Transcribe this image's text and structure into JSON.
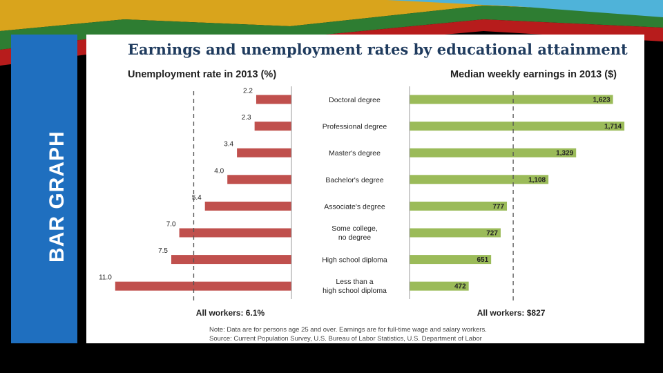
{
  "slide": {
    "side_title": "BAR GRAPH"
  },
  "chart_data": {
    "type": "bar",
    "title": "Earnings and unemployment rates by educational attainment",
    "categories": [
      "Doctoral degree",
      "Professional degree",
      "Master's degree",
      "Bachelor's degree",
      "Associate's degree",
      "Some college, no degree",
      "High school diploma",
      "Less than a high school diploma"
    ],
    "category_lines": [
      [
        "Doctoral degree"
      ],
      [
        "Professional degree"
      ],
      [
        "Master's degree"
      ],
      [
        "Bachelor's degree"
      ],
      [
        "Associate's degree"
      ],
      [
        "Some college,",
        "no degree"
      ],
      [
        "High school diploma"
      ],
      [
        "Less than a",
        "high school diploma"
      ]
    ],
    "series": [
      {
        "name": "Unemployment rate in 2013 (%)",
        "color": "#c0504d",
        "values": [
          2.2,
          2.3,
          3.4,
          4.0,
          5.4,
          7.0,
          7.5,
          11.0
        ],
        "labels": [
          "2.2",
          "2.3",
          "3.4",
          "4.0",
          "5.4",
          "7.0",
          "7.5",
          "11.0"
        ],
        "reference_value": 6.1,
        "reference_label": "All workers: 6.1%"
      },
      {
        "name": "Median weekly earnings in 2013 ($)",
        "color": "#9bbb59",
        "values": [
          1623,
          1714,
          1329,
          1108,
          777,
          727,
          651,
          472
        ],
        "labels": [
          "1,623",
          "1,714",
          "1,329",
          "1,108",
          "777",
          "727",
          "651",
          "472"
        ],
        "reference_value": 827,
        "reference_label": "All workers: $827"
      }
    ],
    "notes": [
      "Note: Data are for persons age 25 and over. Earnings are for full-time wage and salary workers.",
      "Source: Current Population Survey, U.S. Bureau of Labor Statistics, U.S. Department of Labor"
    ]
  }
}
